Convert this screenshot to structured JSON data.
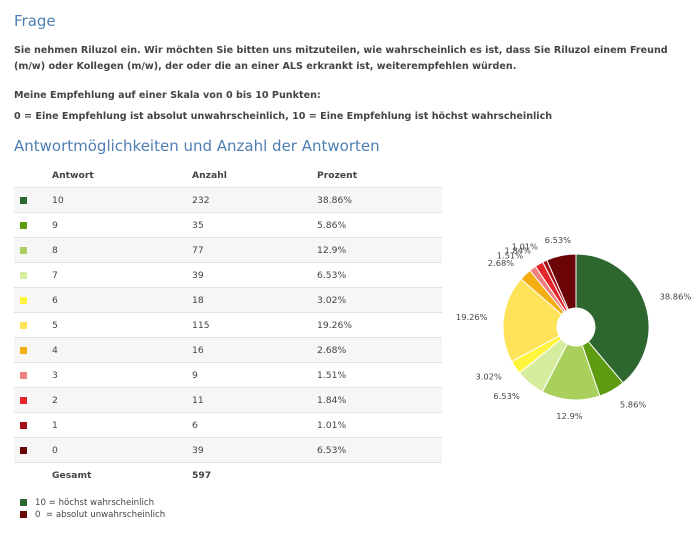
{
  "section1_title": "Frage",
  "question": "Sie nehmen Riluzol ein. Wir möchten Sie bitten uns mitzuteilen, wie wahrscheinlich es ist, dass Sie Riluzol einem Freund (m/w) oder Kollegen (m/w), der oder die an einer ALS erkrankt ist, weiterempfehlen würden.",
  "scale_intro": "Meine Empfehlung auf einer Skala von 0 bis 10 Punkten:",
  "scale_def": "0 = Eine Empfehlung ist absolut unwahrscheinlich, 10 = Eine Empfehlung ist höchst wahrscheinlich",
  "section2_title": "Antwortmöglichkeiten und Anzahl der Antworten",
  "table": {
    "headers": [
      "Antwort",
      "Anzahl",
      "Prozent"
    ],
    "total_label": "Gesamt",
    "total_value": "597"
  },
  "legend": [
    "10 = höchst wahrscheinlich",
    "0  = absolut unwahrscheinlich"
  ],
  "chart_data": {
    "type": "pie",
    "donut": true,
    "categories": [
      "10",
      "9",
      "8",
      "7",
      "6",
      "5",
      "4",
      "3",
      "2",
      "1",
      "0"
    ],
    "values": [
      232,
      35,
      77,
      39,
      18,
      115,
      16,
      9,
      11,
      6,
      39
    ],
    "percent_labels": [
      "38.86%",
      "5.86%",
      "12.9%",
      "6.53%",
      "3.02%",
      "19.26%",
      "2.68%",
      "1.51%",
      "1.84%",
      "1.01%",
      "6.53%"
    ],
    "colors": [
      "#2e6630",
      "#5d9b10",
      "#a9d05c",
      "#d6eda0",
      "#fff53c",
      "#fde25a",
      "#f4ae12",
      "#ef8080",
      "#e4252c",
      "#a51016",
      "#6b0508"
    ]
  }
}
